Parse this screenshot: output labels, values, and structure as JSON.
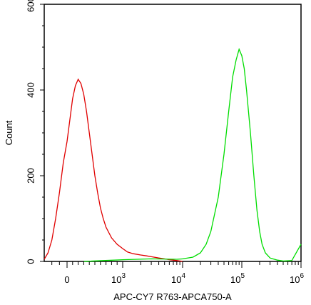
{
  "chart_data": {
    "type": "line",
    "title": "",
    "xlabel": "APC-CY7 R763-APCA750-A",
    "ylabel": "Count",
    "xscale": "biexponential",
    "xlim": [
      -300,
      1000000
    ],
    "ylim": [
      0,
      600
    ],
    "grid": false,
    "legend": "none",
    "x_ticks": [
      {
        "value": 0,
        "label": "0",
        "sup": ""
      },
      {
        "value": 1000,
        "label": "10",
        "sup": "3"
      },
      {
        "value": 10000,
        "label": "10",
        "sup": "4"
      },
      {
        "value": 100000,
        "label": "10",
        "sup": "5"
      },
      {
        "value": 1000000,
        "label": "10",
        "sup": "6"
      }
    ],
    "y_ticks": [
      {
        "value": 0,
        "label": "0"
      },
      {
        "value": 200,
        "label": "200"
      },
      {
        "value": 400,
        "label": "400"
      },
      {
        "value": 600,
        "label": "600"
      }
    ],
    "series": [
      {
        "color": "#e00000",
        "x": [
          -300,
          -250,
          -200,
          -150,
          -100,
          -50,
          0,
          50,
          100,
          150,
          200,
          250,
          300,
          350,
          400,
          450,
          500,
          550,
          600,
          650,
          700,
          800,
          900,
          1000,
          1200,
          1500,
          2000,
          2500,
          3000,
          4000,
          5000,
          6000,
          7000,
          8000,
          9000,
          10000
        ],
        "y": [
          5,
          20,
          50,
          100,
          160,
          230,
          280,
          330,
          380,
          410,
          425,
          415,
          390,
          350,
          300,
          250,
          200,
          160,
          125,
          100,
          80,
          55,
          40,
          30,
          22,
          18,
          15,
          13,
          11,
          8,
          6,
          4,
          3,
          2,
          1,
          0
        ]
      },
      {
        "color": "#00dd00",
        "x": [
          300,
          1000,
          3000,
          8000,
          10000,
          15000,
          20000,
          25000,
          30000,
          40000,
          50000,
          60000,
          70000,
          80000,
          90000,
          100000,
          110000,
          120000,
          140000,
          160000,
          180000,
          200000,
          220000,
          250000,
          300000,
          400000,
          500000,
          700000,
          1000000
        ],
        "y": [
          0,
          4,
          6,
          5,
          6,
          10,
          20,
          40,
          70,
          150,
          250,
          350,
          430,
          470,
          495,
          480,
          450,
          400,
          300,
          200,
          120,
          70,
          40,
          20,
          8,
          3,
          1,
          2,
          40
        ]
      }
    ]
  }
}
